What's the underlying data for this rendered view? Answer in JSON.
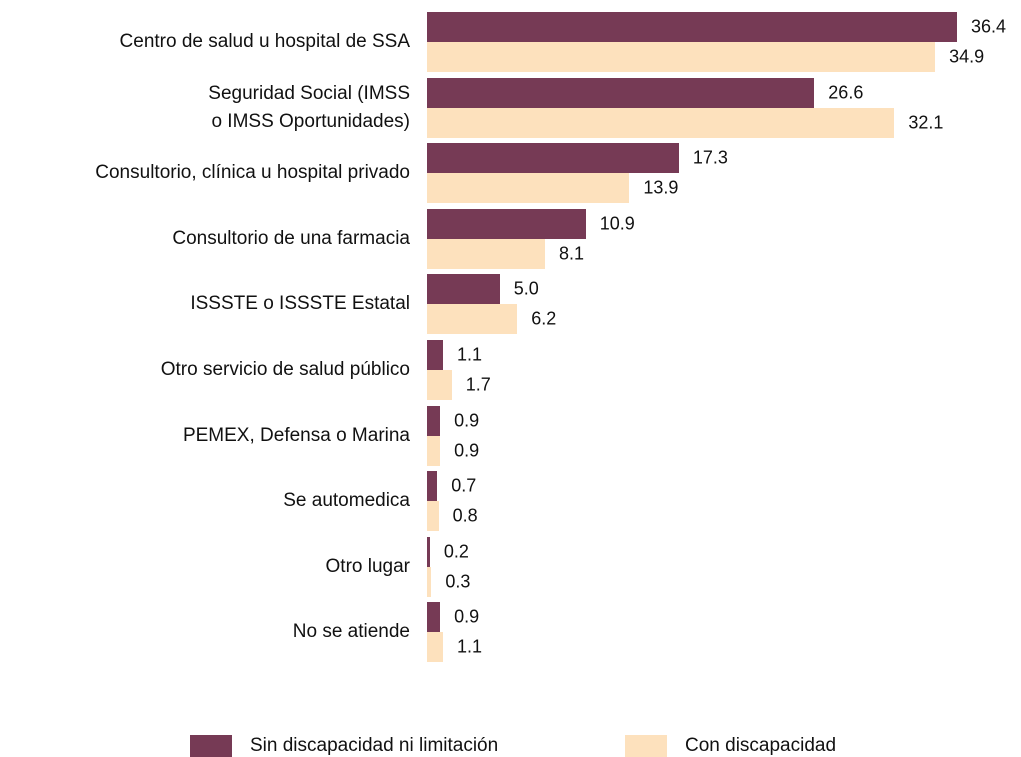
{
  "chart_data": {
    "type": "barh",
    "categories": [
      "Centro de salud u hospital de SSA",
      "Seguridad Social (IMSS\no IMSS Oportunidades)",
      "Consultorio, clínica u hospital privado",
      "Consultorio de una farmacia",
      "ISSSTE o ISSSTE Estatal",
      "Otro servicio de salud público",
      "PEMEX, Defensa o Marina",
      "Se automedica",
      "Otro lugar",
      "No se atiende"
    ],
    "series": [
      {
        "name": "Sin discapacidad ni limitación",
        "color": "#763a55",
        "values": [
          36.4,
          26.6,
          17.3,
          10.9,
          5.0,
          1.1,
          0.9,
          0.7,
          0.2,
          0.9
        ],
        "value_labels": [
          "36.4",
          "26.6",
          "17.3",
          "10.9",
          "5.0",
          "1.1",
          "0.9",
          "0.7",
          "0.2",
          "0.9"
        ]
      },
      {
        "name": "Con discapacidad",
        "color": "#fde1bd",
        "values": [
          34.9,
          32.1,
          13.9,
          8.1,
          6.2,
          1.7,
          0.9,
          0.8,
          0.3,
          1.1
        ],
        "value_labels": [
          "34.9",
          "32.1",
          "13.9",
          "8.1",
          "6.2",
          "1.7",
          "0.9",
          "0.8",
          "0.3",
          "1.1"
        ]
      }
    ],
    "legend": "bottom"
  }
}
